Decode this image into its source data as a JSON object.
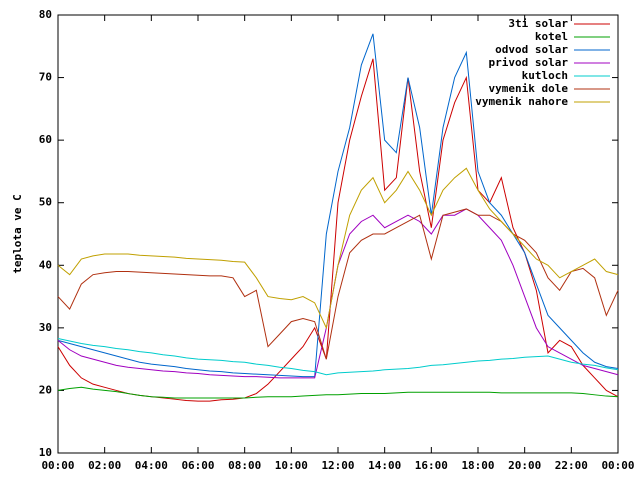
{
  "chart_data": {
    "type": "line",
    "y_label": "teplota ve C",
    "x": [
      0,
      0.5,
      1,
      1.5,
      2,
      2.5,
      3,
      3.5,
      4,
      4.5,
      5,
      5.5,
      6,
      6.5,
      7,
      7.5,
      8,
      8.5,
      9,
      9.5,
      10,
      10.5,
      11,
      11.5,
      12,
      12.5,
      13,
      13.5,
      14,
      14.5,
      15,
      15.5,
      16,
      16.5,
      17,
      17.5,
      18,
      18.5,
      19,
      19.5,
      20,
      20.5,
      21,
      21.5,
      22,
      22.5,
      23,
      23.5,
      24
    ],
    "xlim": [
      0,
      24
    ],
    "xticks": [
      {
        "value": 0,
        "label": "00:00"
      },
      {
        "value": 2,
        "label": "02:00"
      },
      {
        "value": 4,
        "label": "04:00"
      },
      {
        "value": 6,
        "label": "06:00"
      },
      {
        "value": 8,
        "label": "08:00"
      },
      {
        "value": 10,
        "label": "10:00"
      },
      {
        "value": 12,
        "label": "12:00"
      },
      {
        "value": 14,
        "label": "14:00"
      },
      {
        "value": 16,
        "label": "16:00"
      },
      {
        "value": 18,
        "label": "18:00"
      },
      {
        "value": 20,
        "label": "20:00"
      },
      {
        "value": 22,
        "label": "22:00"
      },
      {
        "value": 24,
        "label": "00:00"
      }
    ],
    "ylim": [
      10,
      80
    ],
    "yticks": [
      10,
      20,
      30,
      40,
      50,
      60,
      70,
      80
    ],
    "legend": "top-right",
    "series": [
      {
        "name": "3ti solar",
        "color": "#cc0000",
        "values": [
          27,
          24,
          22,
          21,
          20.5,
          20,
          19.5,
          19.2,
          19,
          18.8,
          18.6,
          18.4,
          18.3,
          18.3,
          18.5,
          18.6,
          18.8,
          19.5,
          21,
          23,
          25,
          27,
          30,
          25,
          50,
          60,
          67,
          73,
          52,
          54,
          70,
          55,
          46,
          60,
          66,
          70,
          52,
          50,
          54,
          46,
          42,
          36,
          26,
          28,
          27,
          24,
          22,
          20,
          19
        ]
      },
      {
        "name": "kotel",
        "color": "#00a000",
        "values": [
          20,
          20.3,
          20.5,
          20.2,
          20,
          19.8,
          19.5,
          19.2,
          19,
          18.9,
          18.8,
          18.8,
          18.8,
          18.8,
          18.8,
          18.8,
          18.8,
          18.9,
          19,
          19,
          19,
          19.1,
          19.2,
          19.3,
          19.3,
          19.4,
          19.5,
          19.5,
          19.5,
          19.6,
          19.7,
          19.7,
          19.7,
          19.7,
          19.7,
          19.7,
          19.7,
          19.7,
          19.6,
          19.6,
          19.6,
          19.6,
          19.6,
          19.6,
          19.6,
          19.5,
          19.3,
          19.1,
          19
        ]
      },
      {
        "name": "odvod solar",
        "color": "#0066cc",
        "values": [
          28,
          27.5,
          27,
          26.5,
          26,
          25.5,
          25,
          24.5,
          24.2,
          24,
          23.8,
          23.5,
          23.3,
          23.1,
          23,
          22.8,
          22.7,
          22.6,
          22.5,
          22.4,
          22.3,
          22.2,
          22.2,
          45,
          55,
          62,
          72,
          77,
          60,
          58,
          70,
          62,
          48,
          62,
          70,
          74,
          55,
          50,
          48,
          45,
          42,
          37,
          32,
          30,
          28,
          26,
          24.5,
          23.8,
          23.5
        ]
      },
      {
        "name": "privod solar",
        "color": "#a000c0",
        "values": [
          28,
          26.5,
          25.5,
          25,
          24.5,
          24,
          23.7,
          23.5,
          23.3,
          23.1,
          23,
          22.8,
          22.7,
          22.5,
          22.4,
          22.3,
          22.2,
          22.2,
          22.1,
          22,
          22,
          22,
          22,
          30,
          40,
          45,
          47,
          48,
          46,
          47,
          48,
          47,
          45,
          48,
          48,
          49,
          48,
          46,
          44,
          40,
          35,
          30,
          27,
          26,
          25,
          24,
          23.5,
          23,
          22.5
        ]
      },
      {
        "name": "kutloch",
        "color": "#00cccc",
        "values": [
          28.3,
          27.9,
          27.5,
          27.2,
          27,
          26.7,
          26.5,
          26.2,
          26,
          25.7,
          25.5,
          25.2,
          25,
          24.9,
          24.8,
          24.6,
          24.5,
          24.2,
          24,
          23.7,
          23.5,
          23.2,
          23,
          22.5,
          22.8,
          22.9,
          23,
          23.1,
          23.3,
          23.4,
          23.5,
          23.7,
          24,
          24.1,
          24.3,
          24.5,
          24.7,
          24.8,
          25,
          25.1,
          25.3,
          25.4,
          25.5,
          25,
          24.5,
          24.2,
          24,
          23.6,
          23.3
        ]
      },
      {
        "name": "vymenik dole",
        "color": "#b03010",
        "values": [
          35,
          33,
          37,
          38.5,
          38.8,
          39,
          39,
          38.9,
          38.8,
          38.7,
          38.6,
          38.5,
          38.4,
          38.3,
          38.3,
          38,
          35,
          36,
          27,
          29,
          31,
          31.5,
          31,
          25,
          35,
          42,
          44,
          45,
          45,
          46,
          47,
          48,
          41,
          48,
          48.5,
          49,
          48,
          48,
          47,
          45,
          44,
          42,
          38,
          36,
          39,
          39.5,
          38,
          32,
          36
        ]
      },
      {
        "name": "vymenik nahore",
        "color": "#c0a000",
        "values": [
          40,
          38.5,
          41,
          41.5,
          41.8,
          41.8,
          41.8,
          41.6,
          41.5,
          41.4,
          41.3,
          41.1,
          41,
          40.9,
          40.8,
          40.6,
          40.5,
          38,
          35,
          34.7,
          34.5,
          35,
          34,
          30,
          40,
          48,
          52,
          54,
          50,
          52,
          55,
          52,
          48,
          52,
          54,
          55.5,
          52,
          49,
          47,
          45,
          43,
          41,
          40,
          38,
          39,
          40,
          41,
          39,
          38.5
        ]
      }
    ]
  }
}
